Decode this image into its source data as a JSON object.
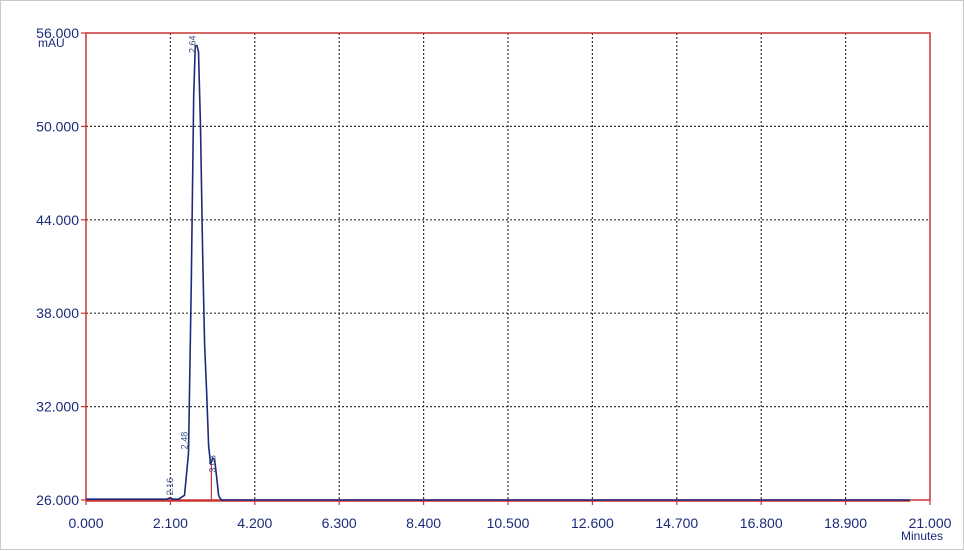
{
  "chart_data": {
    "type": "line",
    "ylabel": "mAU",
    "xlabel": "Minutes",
    "xlim": [
      0,
      21
    ],
    "ylim": [
      26,
      56
    ],
    "x_ticks": [
      0,
      2.1,
      4.2,
      6.3,
      8.4,
      10.5,
      12.6,
      14.7,
      16.8,
      18.9,
      21
    ],
    "x_tick_labels": [
      "0.000",
      "2.100",
      "4.200",
      "6.300",
      "8.400",
      "10.500",
      "12.600",
      "14.700",
      "16.800",
      "18.900",
      "21.000"
    ],
    "y_ticks": [
      26,
      32,
      38,
      44,
      50,
      56
    ],
    "y_tick_labels": [
      "26.000",
      "32.000",
      "38.000",
      "44.000",
      "50.000",
      "56.000"
    ],
    "grid": true,
    "colors": {
      "axis": "#cc3333",
      "trace": "#1b2b7a",
      "grid": "#333333",
      "baseline": "#cc3333"
    },
    "series": [
      {
        "x": [
          0,
          2.0,
          2.1,
          2.15,
          2.3,
          2.45,
          2.55,
          2.62,
          2.68,
          2.72,
          2.76,
          2.8,
          2.85,
          2.9,
          2.95,
          3.0,
          3.05,
          3.1,
          3.15,
          3.2,
          3.25,
          3.3,
          3.35,
          3.4,
          20.5
        ],
        "y": [
          26.05,
          26.05,
          26.15,
          26.05,
          26.05,
          26.3,
          29,
          40,
          52,
          55.2,
          55.2,
          54.8,
          50,
          42,
          36,
          33,
          29.5,
          28.3,
          28.7,
          28.6,
          27.5,
          26.3,
          26.05,
          26.0,
          26.0
        ]
      }
    ],
    "peak_labels": [
      {
        "x": 2.16,
        "text": "2.16"
      },
      {
        "x": 2.52,
        "text": "2.48"
      },
      {
        "x": 2.72,
        "text": "2.64"
      },
      {
        "x": 3.22,
        "text": "3.03"
      }
    ]
  }
}
